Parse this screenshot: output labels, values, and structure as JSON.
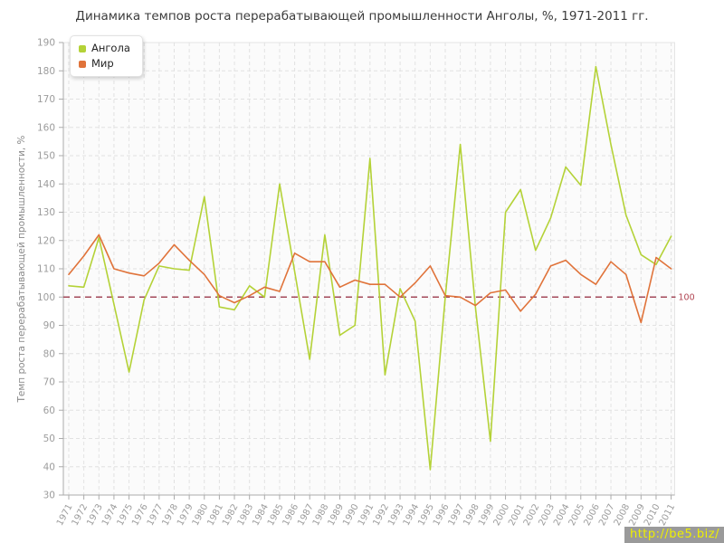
{
  "title": "Динамика темпов роста перерабатывающей промышленности Анголы, %, 1971-2011 гг.",
  "legend": {
    "items": [
      {
        "label": "Ангола",
        "color": "#b4d237"
      },
      {
        "label": "Мир",
        "color": "#e0733a"
      }
    ]
  },
  "watermark": {
    "text": "http://be5.biz/",
    "bg_color": "#9a9a9a",
    "text_color": "#eef000"
  },
  "colors": {
    "angola_line": "#b4d237",
    "world_line": "#e0733a",
    "reference_line": "#a3495a",
    "reference_label": "#b04350",
    "axis": "#ababab",
    "grid": "#e2e2e2",
    "tick_label": "#9c9c9c",
    "plot_background": "#fbfbfb",
    "title_text": "#3c3c3c",
    "axis_title": "#8a8a8a"
  },
  "chart_data": {
    "type": "line",
    "title": "Динамика темпов роста перерабатывающей промышленности Анголы, %, 1971-2011 гг.",
    "xlabel": "",
    "ylabel": "Темп роста перерабатывающей промышленности, %",
    "ylim": [
      30,
      190
    ],
    "yticks": [
      30,
      40,
      50,
      60,
      70,
      80,
      90,
      100,
      110,
      120,
      130,
      140,
      150,
      160,
      170,
      180,
      190
    ],
    "grid": true,
    "legend_position": "top-left",
    "reference_line": {
      "value": 100,
      "label": "100"
    },
    "categories": [
      "1971",
      "1972",
      "1973",
      "1974",
      "1975",
      "1976",
      "1977",
      "1978",
      "1979",
      "1980",
      "1981",
      "1982",
      "1983",
      "1984",
      "1985",
      "1986",
      "1987",
      "1988",
      "1989",
      "1990",
      "1991",
      "1992",
      "1993",
      "1994",
      "1995",
      "1996",
      "1997",
      "1998",
      "1999",
      "2000",
      "2001",
      "2002",
      "2003",
      "2004",
      "2005",
      "2006",
      "2007",
      "2008",
      "2009",
      "2010",
      "2011"
    ],
    "series": [
      {
        "name": "Ангола",
        "color": "#b4d237",
        "values": [
          104,
          103.5,
          121,
          97.5,
          73.5,
          99,
          111,
          110,
          109.5,
          135.5,
          96.5,
          95.5,
          104,
          100,
          140,
          109,
          78,
          122,
          86.5,
          90,
          149,
          72.5,
          103,
          91.5,
          39,
          100,
          154,
          96.5,
          49,
          130,
          138,
          116.5,
          128,
          146,
          139.5,
          181.5,
          154,
          129,
          115,
          111.5,
          121.5
        ]
      },
      {
        "name": "Мир",
        "color": "#e0733a",
        "values": [
          108,
          114.5,
          122,
          110,
          108.5,
          107.5,
          112,
          118.5,
          113,
          108,
          100.5,
          98,
          100.5,
          103.5,
          102,
          115.5,
          112.5,
          112.5,
          103.5,
          106,
          104.5,
          104.5,
          100,
          105,
          111,
          100.5,
          100,
          97,
          101.5,
          102.5,
          95,
          101,
          111,
          113,
          108,
          104.5,
          112.5,
          108,
          91,
          114,
          110
        ]
      }
    ]
  }
}
